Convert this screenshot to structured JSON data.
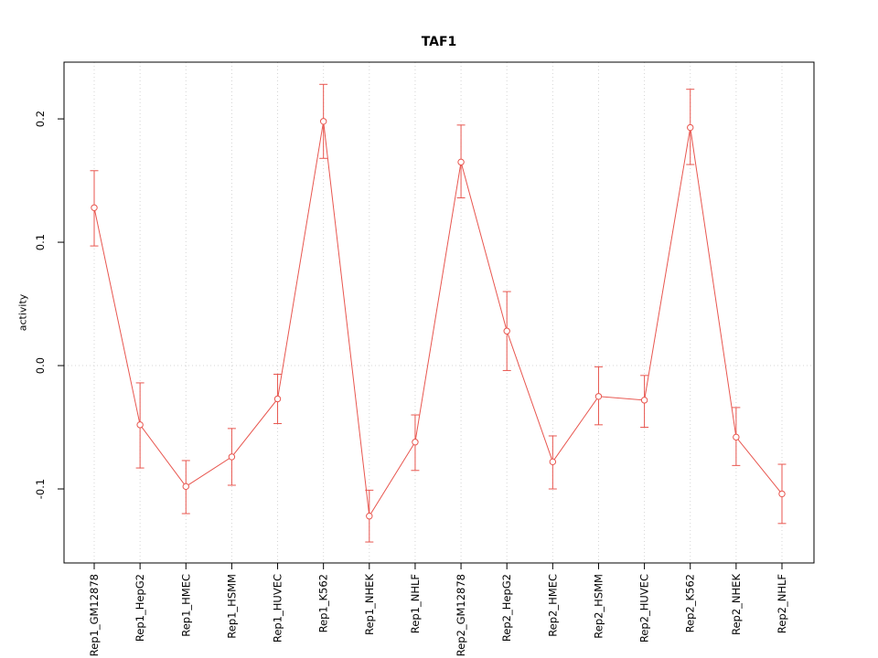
{
  "chart_data": {
    "type": "line",
    "title": "TAF1",
    "xlabel": "",
    "ylabel": "activity",
    "categories": [
      "Rep1_GM12878",
      "Rep1_HepG2",
      "Rep1_HMEC",
      "Rep1_HSMM",
      "Rep1_HUVEC",
      "Rep1_K562",
      "Rep1_NHEK",
      "Rep1_NHLF",
      "Rep2_GM12878",
      "Rep2_HepG2",
      "Rep2_HMEC",
      "Rep2_HSMM",
      "Rep2_HUVEC",
      "Rep2_K562",
      "Rep2_NHEK",
      "Rep2_NHLF"
    ],
    "values": [
      0.128,
      -0.048,
      -0.098,
      -0.074,
      -0.027,
      0.198,
      -0.122,
      -0.062,
      0.165,
      0.028,
      -0.078,
      -0.025,
      -0.028,
      0.193,
      -0.058,
      -0.104
    ],
    "err_low": [
      0.097,
      -0.083,
      -0.12,
      -0.097,
      -0.047,
      0.168,
      -0.143,
      -0.085,
      0.136,
      -0.004,
      -0.1,
      -0.048,
      -0.05,
      0.163,
      -0.081,
      -0.128
    ],
    "err_high": [
      0.158,
      -0.014,
      -0.077,
      -0.051,
      -0.007,
      0.228,
      -0.101,
      -0.04,
      0.195,
      0.06,
      -0.057,
      -0.001,
      -0.008,
      0.224,
      -0.034,
      -0.08
    ],
    "ylim": [
      -0.16,
      0.246
    ],
    "y_ticks": [
      -0.1,
      0.0,
      0.1,
      0.2
    ],
    "y_tick_labels": [
      "-0.1",
      "0.0",
      "0.1",
      "0.2"
    ],
    "grid": {
      "vertical_at_categories": true,
      "horizontal_at_zero": true,
      "style": "dotted"
    },
    "legend": "none",
    "colors": {
      "series": "#e8564f",
      "grid": "#d4d4d4",
      "axis": "#000000",
      "background": "#ffffff",
      "point_fill": "#ffffff"
    }
  }
}
